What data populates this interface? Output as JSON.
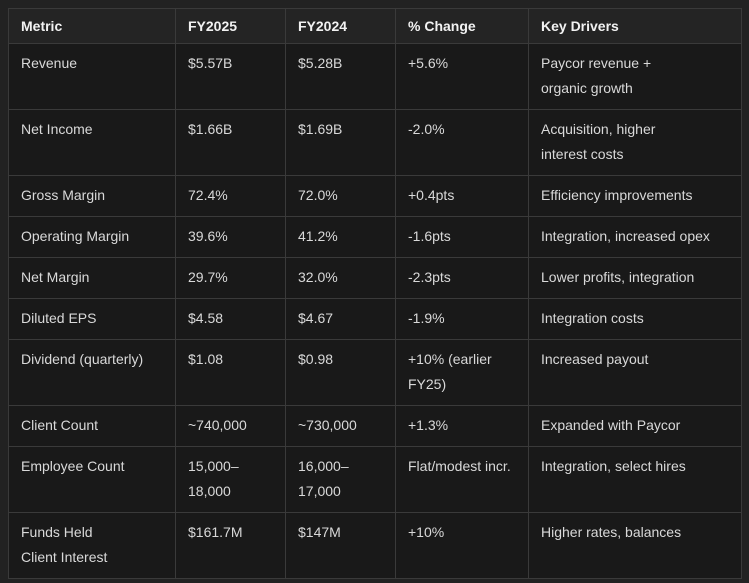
{
  "palette": {
    "page_background": "#222222",
    "cell_background": "#191919",
    "header_background": "#242424",
    "border": "#3a3a3a",
    "header_text": "#f2f2f2",
    "body_text": "#d9d9d9"
  },
  "table": {
    "columns": [
      {
        "key": "metric",
        "label": "Metric"
      },
      {
        "key": "fy2025",
        "label": "FY2025"
      },
      {
        "key": "fy2024",
        "label": "FY2024"
      },
      {
        "key": "change",
        "label": "% Change"
      },
      {
        "key": "drivers",
        "label": "Key Drivers"
      }
    ],
    "rows": [
      {
        "metric": "Revenue",
        "fy2025": "$5.57B",
        "fy2024": "$5.28B",
        "change": "+5.6%",
        "drivers": "Paycor revenue +\norganic growth"
      },
      {
        "metric": "Net Income",
        "fy2025": "$1.66B",
        "fy2024": "$1.69B",
        "change": "-2.0%",
        "drivers": "Acquisition, higher\ninterest costs"
      },
      {
        "metric": "Gross Margin",
        "fy2025": "72.4%",
        "fy2024": "72.0%",
        "change": "+0.4pts",
        "drivers": "Efficiency improvements"
      },
      {
        "metric": "Operating Margin",
        "fy2025": "39.6%",
        "fy2024": "41.2%",
        "change": "-1.6pts",
        "drivers": "Integration, increased opex"
      },
      {
        "metric": "Net Margin",
        "fy2025": "29.7%",
        "fy2024": "32.0%",
        "change": "-2.3pts",
        "drivers": "Lower profits, integration"
      },
      {
        "metric": "Diluted EPS",
        "fy2025": "$4.58",
        "fy2024": "$4.67",
        "change": "-1.9%",
        "drivers": "Integration costs"
      },
      {
        "metric": "Dividend (quarterly)",
        "fy2025": "$1.08",
        "fy2024": "$0.98",
        "change": "+10% (earlier\nFY25)",
        "drivers": "Increased payout"
      },
      {
        "metric": "Client Count",
        "fy2025": "~740,000",
        "fy2024": "~730,000",
        "change": "+1.3%",
        "drivers": "Expanded with Paycor"
      },
      {
        "metric": "Employee Count",
        "fy2025": "15,000–\n18,000",
        "fy2024": "16,000–\n17,000",
        "change": "Flat/modest incr.",
        "drivers": "Integration, select hires"
      },
      {
        "metric": "Funds Held\nClient Interest",
        "fy2025": "$161.7M",
        "fy2024": "$147M",
        "change": "+10%",
        "drivers": "Higher rates, balances"
      }
    ]
  }
}
